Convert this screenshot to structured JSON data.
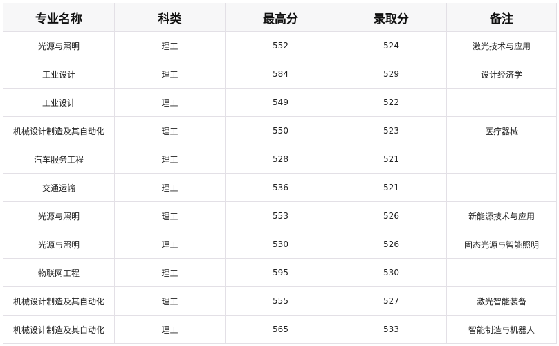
{
  "table": {
    "headers": [
      "专业名称",
      "科类",
      "最高分",
      "录取分",
      "备注"
    ],
    "rows": [
      [
        "光源与照明",
        "理工",
        "552",
        "524",
        "激光技术与应用"
      ],
      [
        "工业设计",
        "理工",
        "584",
        "529",
        "设计经济学"
      ],
      [
        "工业设计",
        "理工",
        "549",
        "522",
        ""
      ],
      [
        "机械设计制造及其自动化",
        "理工",
        "550",
        "523",
        "医疗器械"
      ],
      [
        "汽车服务工程",
        "理工",
        "528",
        "521",
        ""
      ],
      [
        "交通运输",
        "理工",
        "536",
        "521",
        ""
      ],
      [
        "光源与照明",
        "理工",
        "553",
        "526",
        "新能源技术与应用"
      ],
      [
        "光源与照明",
        "理工",
        "530",
        "526",
        "固态光源与智能照明"
      ],
      [
        "物联网工程",
        "理工",
        "595",
        "530",
        ""
      ],
      [
        "机械设计制造及其自动化",
        "理工",
        "555",
        "527",
        "激光智能装备"
      ],
      [
        "机械设计制造及其自动化",
        "理工",
        "565",
        "533",
        "智能制造与机器人"
      ]
    ]
  }
}
